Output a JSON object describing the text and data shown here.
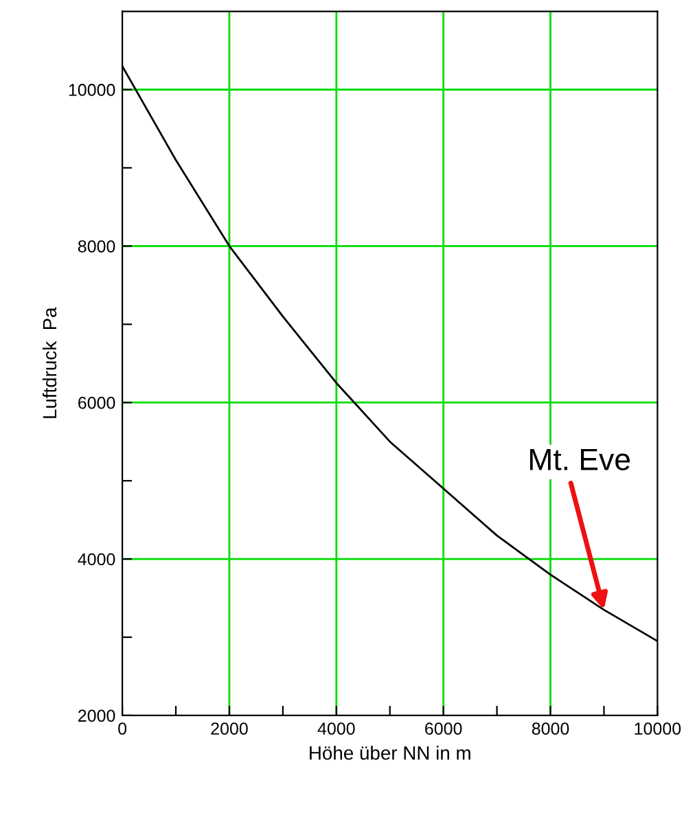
{
  "chart_data": {
    "type": "line",
    "xlabel": "Höhe über NN in m",
    "ylabel": "Luftdruck  Pa",
    "x": [
      0,
      1000,
      2000,
      3000,
      4000,
      5000,
      6000,
      7000,
      8000,
      9000,
      10000
    ],
    "series": [
      {
        "color": "#000000",
        "values": [
          10300,
          9100,
          8000,
          7100,
          6250,
          5500,
          4900,
          4300,
          3800,
          3350,
          2950
        ]
      }
    ],
    "xlim": [
      0,
      10000
    ],
    "ylim": [
      2000,
      11000
    ],
    "xticks": [
      0,
      {
        "value": 1000,
        "label": null
      },
      2000,
      {
        "value": 3000,
        "label": null
      },
      4000,
      {
        "value": 5000,
        "label": null
      },
      6000,
      {
        "value": 7000,
        "label": null
      },
      8000,
      {
        "value": 9000,
        "label": null
      },
      10000
    ],
    "yticks": [
      2000,
      {
        "value": 3000,
        "label": null
      },
      4000,
      {
        "value": 5000,
        "label": null
      },
      6000,
      {
        "value": 7000,
        "label": null
      },
      8000,
      {
        "value": 9000,
        "label": null
      },
      10000
    ],
    "grid": true,
    "marker": "none",
    "line_style": "solid",
    "annotations": [
      {
        "text": "Mt. Eve",
        "x": 9000,
        "y": 3350
      }
    ]
  }
}
